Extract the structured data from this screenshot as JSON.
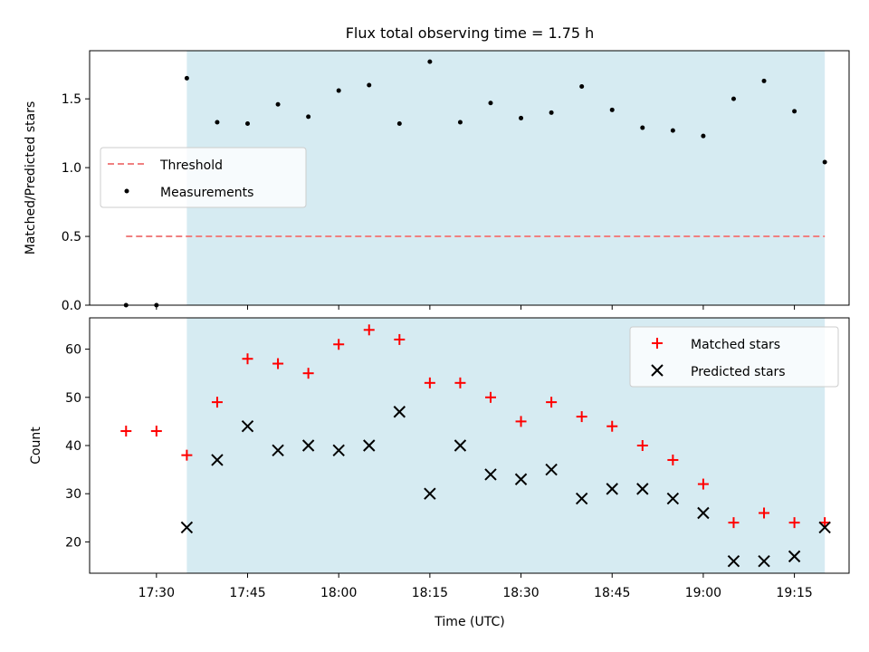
{
  "chart_data": [
    {
      "type": "scatter",
      "title": "Flux total observing time = 1.75 h",
      "xlabel": "",
      "ylabel": "Matched/Predicted stars",
      "ylim": [
        0,
        1.85
      ],
      "yticks": [
        0.0,
        0.5,
        1.0,
        1.5
      ],
      "ytick_labels": [
        "0.0",
        "0.5",
        "1.0",
        "1.5"
      ],
      "xlim": [
        "17:19",
        "19:24"
      ],
      "grid": false,
      "legend_position": "center-left",
      "shaded_interval": {
        "start": "17:35",
        "end": "19:20",
        "color": "#add8e6"
      },
      "series": [
        {
          "name": "Threshold",
          "style": "dashed-line",
          "color": "#f08080",
          "x": [
            "17:25",
            "19:20"
          ],
          "y": [
            0.5,
            0.5
          ]
        },
        {
          "name": "Measurements",
          "style": "point",
          "color": "#000000",
          "x": [
            "17:25",
            "17:30",
            "17:35",
            "17:40",
            "17:45",
            "17:50",
            "17:55",
            "18:00",
            "18:05",
            "18:10",
            "18:15",
            "18:20",
            "18:25",
            "18:30",
            "18:35",
            "18:40",
            "18:45",
            "18:50",
            "18:55",
            "19:00",
            "19:05",
            "19:10",
            "19:15",
            "19:20"
          ],
          "y": [
            0.0,
            0.0,
            1.65,
            1.33,
            1.32,
            1.46,
            1.37,
            1.56,
            1.6,
            1.32,
            1.77,
            1.33,
            1.47,
            1.36,
            1.4,
            1.59,
            1.42,
            1.29,
            1.27,
            1.23,
            1.5,
            1.63,
            1.41,
            1.04
          ]
        }
      ]
    },
    {
      "type": "scatter",
      "xlabel": "Time (UTC)",
      "ylabel": "Count",
      "ylim": [
        13.5,
        66.5
      ],
      "yticks": [
        20,
        30,
        40,
        50,
        60
      ],
      "ytick_labels": [
        "20",
        "30",
        "40",
        "50",
        "60"
      ],
      "xlim": [
        "17:19",
        "19:24"
      ],
      "xticks": [
        "17:30",
        "17:45",
        "18:00",
        "18:15",
        "18:30",
        "18:45",
        "19:00",
        "19:15"
      ],
      "grid": false,
      "legend_position": "top-right",
      "shaded_interval": {
        "start": "17:35",
        "end": "19:20",
        "color": "#add8e6"
      },
      "series": [
        {
          "name": "Matched stars",
          "marker": "+",
          "color": "#ff0000",
          "x": [
            "17:25",
            "17:30",
            "17:35",
            "17:40",
            "17:45",
            "17:50",
            "17:55",
            "18:00",
            "18:05",
            "18:10",
            "18:15",
            "18:20",
            "18:25",
            "18:30",
            "18:35",
            "18:40",
            "18:45",
            "18:50",
            "18:55",
            "19:00",
            "19:05",
            "19:10",
            "19:15",
            "19:20"
          ],
          "y": [
            43,
            43,
            38,
            49,
            58,
            57,
            55,
            61,
            64,
            62,
            53,
            53,
            50,
            45,
            49,
            46,
            44,
            40,
            37,
            32,
            24,
            26,
            24,
            24
          ]
        },
        {
          "name": "Predicted stars",
          "marker": "x",
          "color": "#000000",
          "x": [
            "17:35",
            "17:40",
            "17:45",
            "17:50",
            "17:55",
            "18:00",
            "18:05",
            "18:10",
            "18:15",
            "18:20",
            "18:25",
            "18:30",
            "18:35",
            "18:40",
            "18:45",
            "18:50",
            "18:55",
            "19:00",
            "19:05",
            "19:10",
            "19:15",
            "19:20"
          ],
          "y": [
            23,
            37,
            44,
            39,
            40,
            39,
            40,
            47,
            30,
            40,
            34,
            33,
            35,
            29,
            31,
            31,
            29,
            26,
            16,
            16,
            17,
            23
          ]
        }
      ]
    }
  ]
}
